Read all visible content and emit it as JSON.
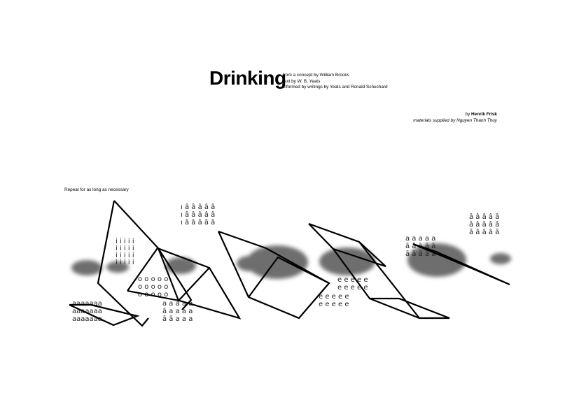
{
  "title": "Drinking",
  "credits": [
    "from a concept by William Brooks",
    "text by W. B. Yeats",
    "informed by writings by Yeats and Ronald Schuchard"
  ],
  "author_prefix": "by",
  "author_name": "Henrik Frisk",
  "materials": "materials supplied by Nguyen Thanh Thuy",
  "instruction": "Repeat for as long as necessary",
  "glyph_blocks": [
    {
      "rows": [
        "ı â â â â â",
        "ı â â â â â",
        "ı â â â â â"
      ]
    },
    {
      "rows": [
        "â â â â â",
        "â â â â â",
        "â â â â â"
      ]
    },
    {
      "rows": [
        "a a a a a",
        "ā ā ā ā ā",
        "ā ā ā ā ā"
      ]
    },
    {
      "rows": [
        "i i i i i",
        "i i i i i",
        "i i i i i",
        "i i i i i"
      ]
    },
    {
      "rows": [
        "o o o o o",
        "o o o o o",
        "o o o o o"
      ]
    },
    {
      "rows": [
        "e e e e e",
        "e e e e e",
        "e e e e e",
        "e e e e e"
      ]
    },
    {
      "rows": [
        "a a a a a",
        "â a a a a",
        "ā ā a a a"
      ]
    },
    {
      "rows": [
        "aaaaaaa",
        "aaaaaaa",
        "aaaaaaa"
      ]
    }
  ]
}
